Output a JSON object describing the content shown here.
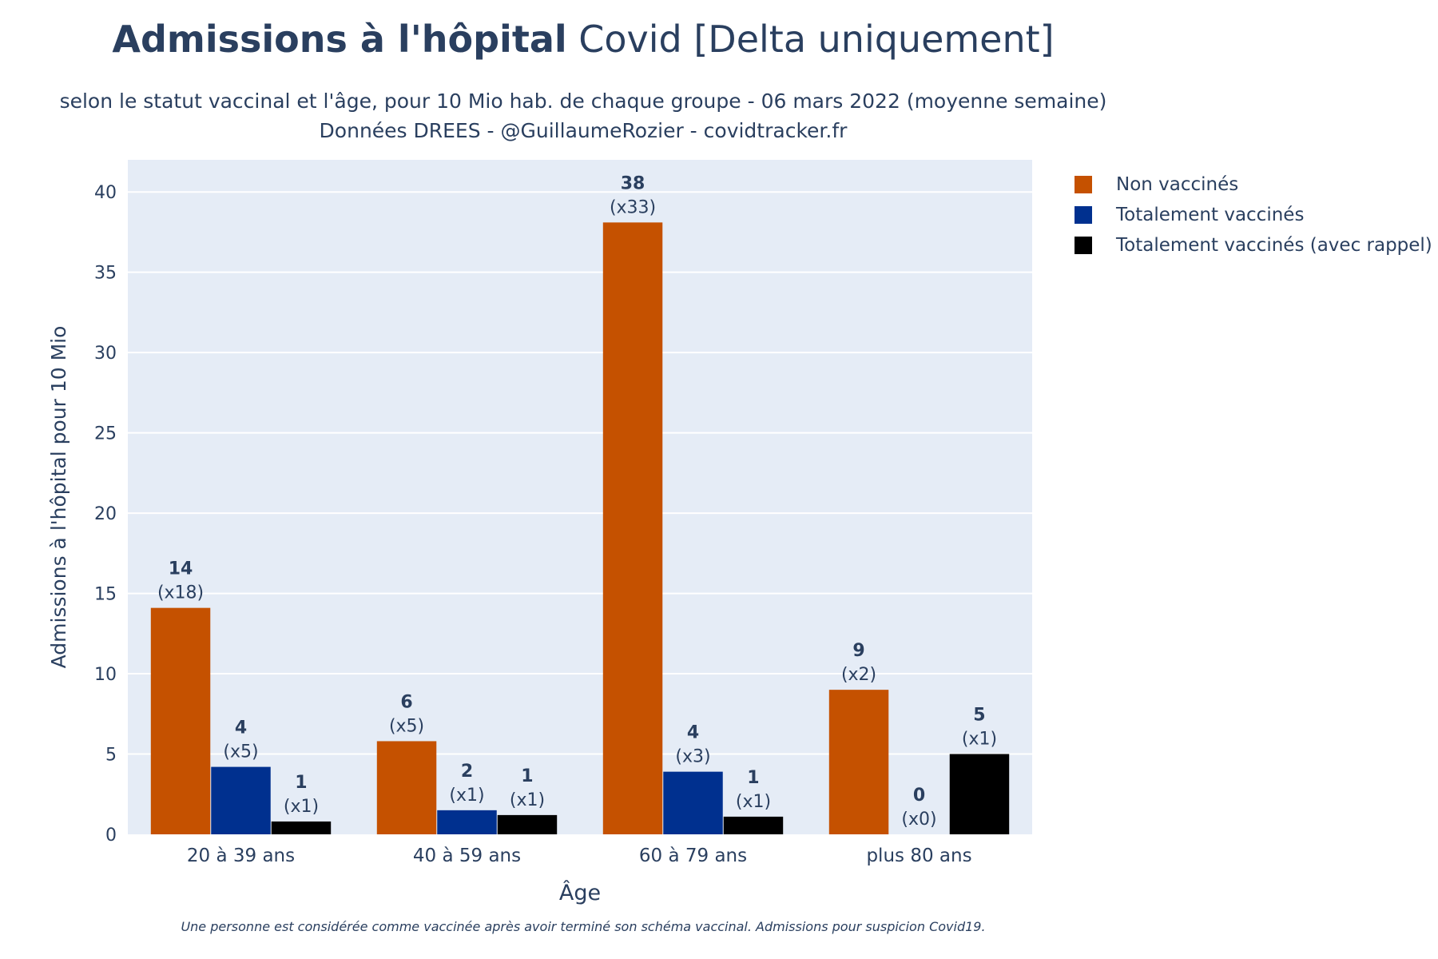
{
  "title": {
    "bold": "Admissions à l'hôpital",
    "rest": " Covid [Delta uniquement]"
  },
  "subtitle": {
    "line1": "selon le statut vaccinal et l'âge, pour 10 Mio hab. de chaque groupe - 06 mars 2022 (moyenne semaine)",
    "line2": "Données DREES - @GuillaumeRozier - covidtracker.fr"
  },
  "footnote": "Une personne est considérée comme vaccinée après avoir terminé son schéma vaccinal. Admissions pour suspicion Covid19.",
  "colors": {
    "non_vaccines": "#c55100",
    "vaccines": "#00308f",
    "rappel": "#000000",
    "plot_bg": "#e5ecf6",
    "text": "#2a3f5f"
  },
  "chart_data": {
    "type": "bar",
    "xlabel": "Âge",
    "ylabel": "Admissions à l'hôpital pour 10 Mio",
    "ylim": [
      0,
      42
    ],
    "yticks": [
      0,
      5,
      10,
      15,
      20,
      25,
      30,
      35,
      40
    ],
    "grid": true,
    "legend_position": "right",
    "categories": [
      "20 à 39 ans",
      "40 à 59 ans",
      "60 à 79 ans",
      "plus 80 ans"
    ],
    "series": [
      {
        "name": "Non vaccinés",
        "color": "#c55100",
        "values": [
          14.1,
          5.8,
          38.1,
          9.0
        ],
        "labels": [
          "14",
          "6",
          "38",
          "9"
        ],
        "ratios": [
          "(x18)",
          "(x5)",
          "(x33)",
          "(x2)"
        ]
      },
      {
        "name": "Totalement vaccinés",
        "color": "#00308f",
        "values": [
          4.2,
          1.5,
          3.9,
          0.0
        ],
        "labels": [
          "4",
          "2",
          "4",
          "0"
        ],
        "ratios": [
          "(x5)",
          "(x1)",
          "(x3)",
          "(x0)"
        ]
      },
      {
        "name": "Totalement vaccinés (avec rappel)",
        "color": "#000000",
        "values": [
          0.8,
          1.2,
          1.1,
          5.0
        ],
        "labels": [
          "1",
          "1",
          "1",
          "5"
        ],
        "ratios": [
          "(x1)",
          "(x1)",
          "(x1)",
          "(x1)"
        ]
      }
    ]
  }
}
